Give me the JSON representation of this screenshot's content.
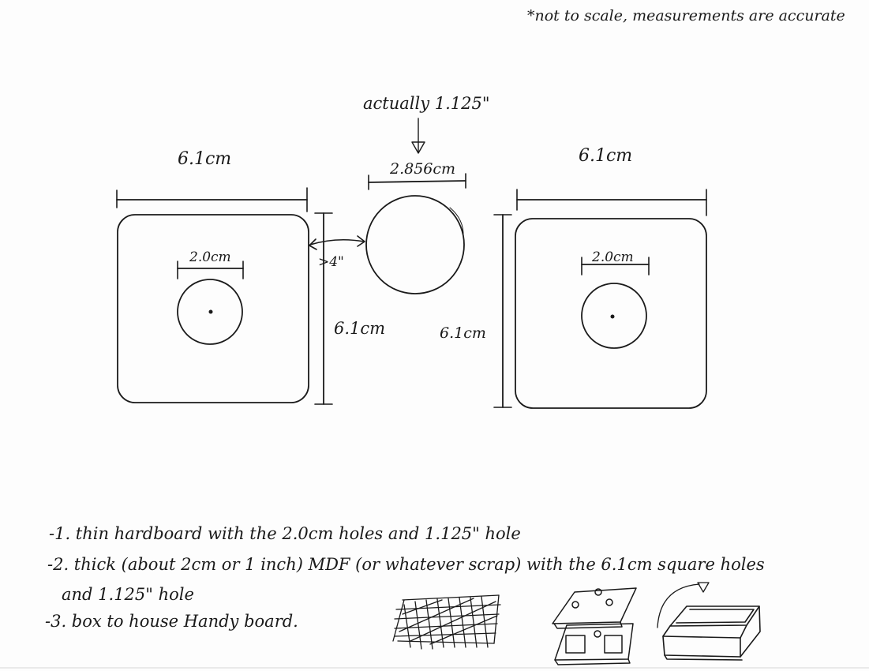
{
  "header_note": "*not to scale, measurements are accurate",
  "top_circle": {
    "annotation": "actually 1.125\"",
    "width_label": "2.856cm"
  },
  "left_piece": {
    "width_label": "6.1cm",
    "hole_label": "2.0cm",
    "height_label": "6.1cm"
  },
  "gap_label": ">4\"",
  "right_piece": {
    "width_label": "6.1cm",
    "hole_label": "2.0cm",
    "height_label": "6.1cm"
  },
  "notes": [
    "-1. thin hardboard with the 2.0cm holes and 1.125\" hole",
    "-2. thick (about 2cm or 1 inch) MDF (or whatever scrap) with the 6.1cm square holes",
    "and 1.125\" hole",
    "-3. box to house Handy board."
  ]
}
